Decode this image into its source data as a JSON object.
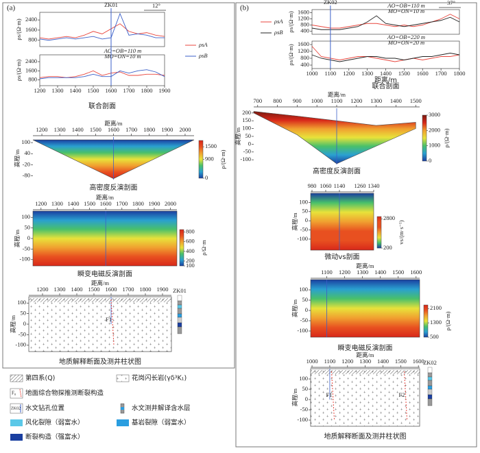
{
  "panel_labels": [
    "(a)",
    "(b)"
  ],
  "chart_data": [
    {
      "type": "line",
      "caption": "联合剖面",
      "ylabel": "ρs/(Ω·m)",
      "angle": "12°",
      "marker": {
        "label": "ZK01",
        "x": 1600
      },
      "annotations2": [
        "AO=OB=110 m",
        "MO=ON=10 m"
      ],
      "x": [
        1200,
        1250,
        1300,
        1350,
        1400,
        1450,
        1500,
        1550,
        1600,
        1650,
        1700,
        1750,
        1800,
        1850,
        1900
      ],
      "xlim": [
        1200,
        1900
      ],
      "xticks": [
        1200,
        1300,
        1400,
        1500,
        1600,
        1700,
        1800,
        1900
      ],
      "ylim": [
        300,
        3000
      ],
      "yticks": [
        800,
        1600,
        2400
      ],
      "series": [
        {
          "name": "ρsA",
          "color": "#e8453c",
          "values": [
            1000,
            900,
            1000,
            1100,
            1000,
            1200,
            1500,
            1300,
            1700,
            2100,
            1500,
            1300,
            1400,
            1200,
            1100
          ],
          "values2": [
            1000,
            1100,
            1100,
            1000,
            1100,
            1300,
            1600,
            1200,
            1400,
            1500,
            1200,
            1200,
            1300,
            1300,
            1200
          ]
        },
        {
          "name": "ρsB",
          "color": "#3a5fc8",
          "values": [
            900,
            800,
            900,
            1000,
            900,
            1000,
            1100,
            900,
            1000,
            2900,
            1200,
            1300,
            1200,
            1000,
            1000
          ],
          "values2": [
            900,
            1000,
            1000,
            1000,
            1000,
            1100,
            1300,
            1100,
            1100,
            1600,
            1400,
            1600,
            1700,
            1500,
            1100
          ]
        }
      ]
    },
    {
      "type": "heatmap",
      "caption": "高密度反演剖面",
      "xlabel": "距离/m",
      "ylabel": "高程/m",
      "marker": {
        "x": 1600
      },
      "xlim": [
        1150,
        2050
      ],
      "xticks": [
        1200,
        1300,
        1400,
        1500,
        1600,
        1700,
        1800,
        1900,
        2000
      ],
      "ylim": [
        -100,
        130
      ],
      "yticks": [
        100,
        40,
        -20,
        -80
      ],
      "colorbar": {
        "label": "ρ/(Ω·m)",
        "lim": [
          0,
          1800
        ],
        "ticks": [
          0,
          900,
          1500
        ]
      },
      "colormap": [
        "#1a3fa0",
        "#2aa0d0",
        "#49c06a",
        "#e8e23a",
        "#f0a030",
        "#e85020",
        "#d8281a"
      ]
    },
    {
      "type": "heatmap",
      "caption": "瞬变电磁反演剖面",
      "xlabel": "距离/m",
      "ylabel": "高程/m",
      "marker": {
        "x": 1600
      },
      "xlim": [
        1150,
        2040
      ],
      "xticks": [
        1200,
        1300,
        1400,
        1500,
        1600,
        1700,
        1800,
        1900,
        2000
      ],
      "ylim": [
        -130,
        130
      ],
      "yticks": [
        100,
        50,
        0,
        -50,
        -100
      ],
      "colorbar": {
        "label": "ρ/Ω·m",
        "lim": [
          100,
          850
        ],
        "ticks": [
          100,
          200,
          400,
          600,
          800
        ]
      },
      "colormap": [
        "#1a3fa0",
        "#2aa0d0",
        "#49c06a",
        "#e8e23a",
        "#f0a030",
        "#e85020",
        "#d8281a"
      ]
    },
    {
      "type": "section",
      "caption": "地质解释断面及测井柱状图",
      "xlabel": "距离/m",
      "ylabel": "高程/m",
      "marker": {
        "x": 1600
      },
      "well": "ZK01",
      "faults": [
        {
          "label": "F1",
          "x": 1600
        }
      ],
      "xlim": [
        1120,
        1952
      ],
      "xticks": [
        1200,
        1300,
        1400,
        1500,
        1600,
        1700,
        1800,
        1900
      ],
      "ylim": [
        -130,
        130
      ],
      "yticks": [
        100,
        50,
        0,
        -50,
        -100
      ]
    },
    {
      "type": "line",
      "caption": "联合剖面",
      "xlabel": "距离/m",
      "ylabel": "ρs/(Ω·m)",
      "angle": "37°",
      "marker": {
        "label": "ZK02",
        "x": 1100
      },
      "annotations": [
        "AO=OB=110 m",
        "MO=ON=10 m"
      ],
      "annotations2": [
        "AO=OB=220 m",
        "MO=ON=20 m"
      ],
      "x": [
        1000,
        1050,
        1100,
        1150,
        1200,
        1250,
        1300,
        1350,
        1400,
        1450,
        1500,
        1550,
        1600,
        1650,
        1700,
        1750,
        1800
      ],
      "xlim": [
        1000,
        1800
      ],
      "xticks": [
        1000,
        1100,
        1200,
        1300,
        1400,
        1500,
        1600,
        1700,
        1800
      ],
      "ylim": [
        200,
        1800
      ],
      "yticks": [
        400,
        800,
        1200,
        1600
      ],
      "series": [
        {
          "name": "ρsA",
          "color": "#e8453c",
          "values": [
            800,
            700,
            600,
            600,
            700,
            800,
            900,
            900,
            800,
            700,
            800,
            700,
            800,
            1000,
            1200,
            1500,
            1200
          ],
          "values2": [
            1500,
            900,
            800,
            700,
            800,
            900,
            900,
            800,
            700,
            600,
            700,
            800,
            700,
            800,
            900,
            900,
            1000
          ]
        },
        {
          "name": "ρsB",
          "color": "#222222",
          "values": [
            600,
            500,
            500,
            500,
            600,
            700,
            1000,
            1400,
            900,
            800,
            700,
            800,
            900,
            1000,
            1100,
            1300,
            1000
          ],
          "values2": [
            1000,
            800,
            700,
            600,
            700,
            800,
            900,
            900,
            800,
            800,
            700,
            800,
            900,
            900,
            1000,
            1100,
            1000
          ]
        }
      ]
    },
    {
      "type": "heatmap",
      "caption": "高密度反演剖面",
      "xlabel": "距离/m",
      "ylabel": "高程/m",
      "marker": {
        "x": 1100
      },
      "xlim": [
        680,
        1520
      ],
      "xticks": [
        700,
        800,
        900,
        1000,
        1100,
        1200,
        1300,
        1400,
        1500
      ],
      "ylim": [
        -130,
        230
      ],
      "yticks": [
        200,
        150,
        100,
        50,
        0,
        -50,
        -100
      ],
      "colorbar": {
        "label": "ρ/(Ω·m)",
        "lim": [
          0,
          3000
        ],
        "ticks": [
          0,
          1000,
          2000,
          3000
        ]
      },
      "colormap": [
        "#7a1a10",
        "#d8281a",
        "#f0a030",
        "#e8e23a",
        "#49c06a",
        "#2aa0d0",
        "#1a3fa0"
      ]
    },
    {
      "type": "heatmap",
      "caption": "微动vs剖面",
      "ylabel": "高程/m",
      "marker": {
        "x": 1140
      },
      "xlim": [
        972,
        1340
      ],
      "xticks": [
        980,
        1060,
        1140,
        1260,
        1340
      ],
      "ylim": [
        -160,
        150
      ],
      "yticks": [
        100,
        50,
        0,
        -50,
        -100
      ],
      "colorbar": {
        "label": "vs/(m·s⁻¹)",
        "lim": [
          200,
          3000
        ],
        "ticks": [
          200,
          2800
        ]
      },
      "colormap": [
        "#1a3fa0",
        "#49c06a",
        "#e8e23a",
        "#f0a030",
        "#e85020",
        "#e85020",
        "#d8281a"
      ]
    },
    {
      "type": "heatmap",
      "caption": "瞬变电磁反演剖面",
      "xlabel": "距离/m",
      "ylabel": "高程/m",
      "marker": {
        "x": 1100
      },
      "xlim": [
        1010,
        1620
      ],
      "xticks": [
        1100,
        1200,
        1300,
        1400,
        1500,
        1600
      ],
      "ylim": [
        -130,
        150
      ],
      "yticks": [
        100,
        50,
        0,
        -50,
        -100
      ],
      "colorbar": {
        "label": "ρ/(Ω·m)",
        "lim": [
          500,
          2300
        ],
        "ticks": [
          500,
          1300,
          2100
        ]
      },
      "colormap": [
        "#1a3fa0",
        "#2aa0d0",
        "#49c06a",
        "#e8e23a",
        "#f0a030",
        "#e85020",
        "#d8281a"
      ]
    },
    {
      "type": "section",
      "caption": "地质解释断面及测井柱状图",
      "xlabel": "距离/m",
      "ylabel": "高程/m",
      "marker": {
        "x": 1100
      },
      "well": "ZK02",
      "faults": [
        {
          "label": "F1",
          "x": 1110
        },
        {
          "label": "F2",
          "x": 1520
        }
      ],
      "xlim": [
        992,
        1607
      ],
      "xticks": [
        1000,
        1100,
        1200,
        1300,
        1400,
        1500,
        1600
      ],
      "ylim": [
        -130,
        150
      ],
      "yticks": [
        100,
        50,
        0,
        -50,
        -100
      ]
    }
  ],
  "legend": {
    "items": [
      "第四系(Q)",
      "花岗闪长岩(γδ³K₁)",
      "地面综合物探推测断裂构造",
      "水文测井解译含水层",
      "水文钻孔位置",
      "风化裂隙（弱富水）",
      "基岩裂隙（弱富水）",
      "断裂构造（强富水）"
    ],
    "fault_symbol": "F₀",
    "well_symbol": "ZK02"
  }
}
